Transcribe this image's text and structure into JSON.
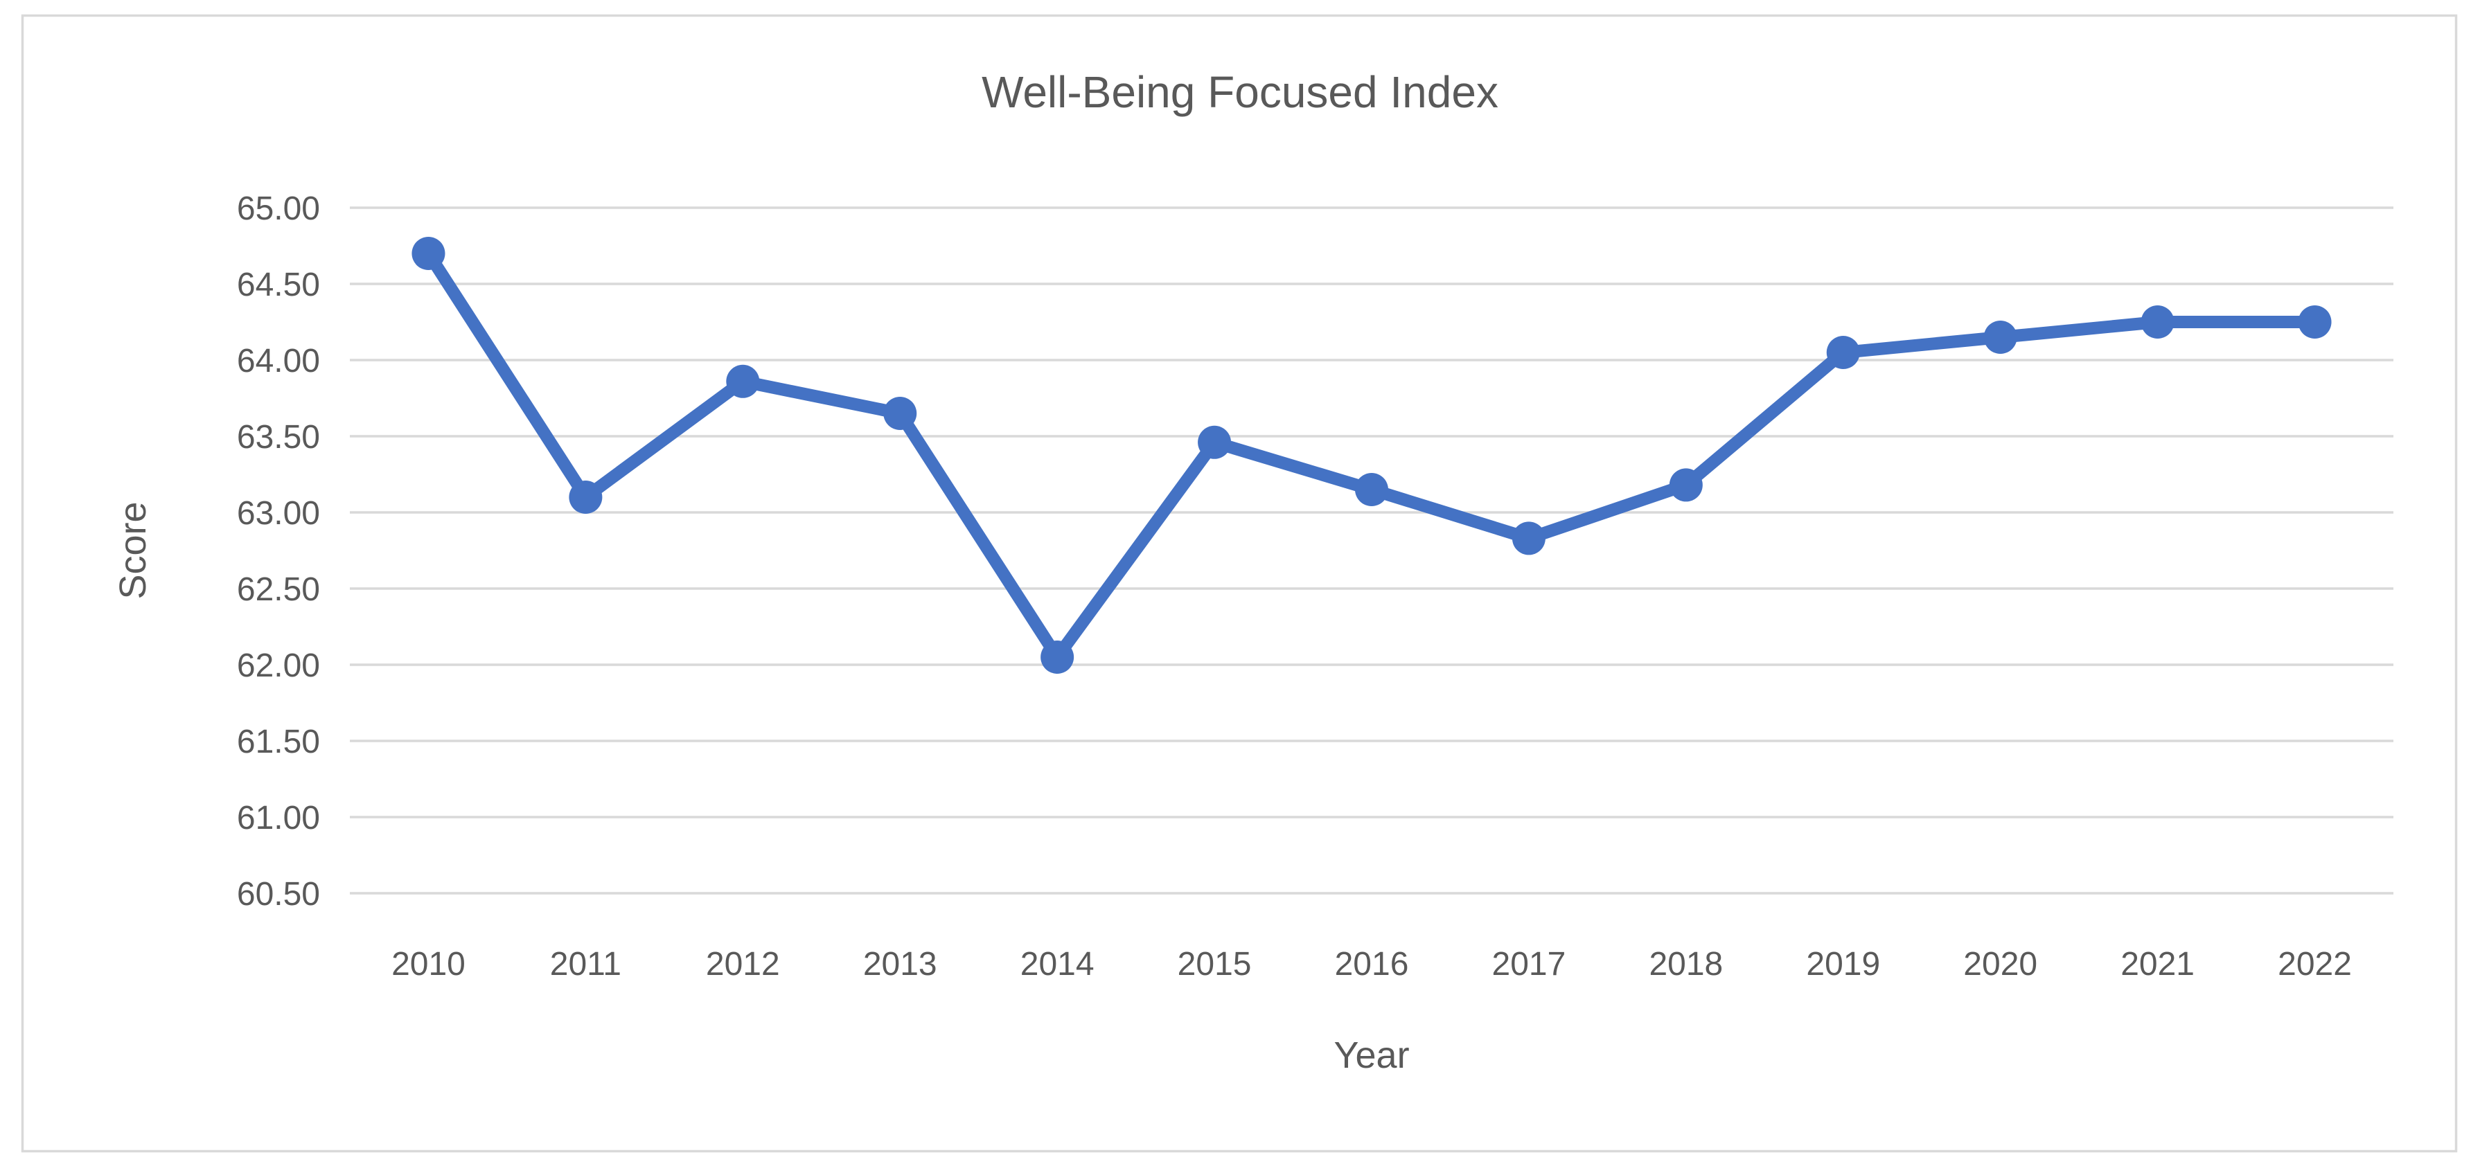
{
  "chart_data": {
    "type": "line",
    "title": "Well-Being Focused Index",
    "xlabel": "Year",
    "ylabel": "Score",
    "categories": [
      "2010",
      "2011",
      "2012",
      "2013",
      "2014",
      "2015",
      "2016",
      "2017",
      "2018",
      "2019",
      "2020",
      "2021",
      "2022"
    ],
    "series": [
      {
        "name": "Well-Being Focused Index",
        "values": [
          64.7,
          63.1,
          63.86,
          63.65,
          62.05,
          63.46,
          63.15,
          62.83,
          63.18,
          64.05,
          64.15,
          64.25,
          64.25
        ]
      }
    ],
    "ylim": [
      60.5,
      65.0
    ],
    "ytick_step": 0.5,
    "ytick_labels": [
      "65.00",
      "64.50",
      "64.00",
      "63.50",
      "63.00",
      "62.50",
      "62.00",
      "61.50",
      "61.00",
      "60.50"
    ],
    "grid": "horizontal",
    "legend": "none",
    "marker": "circle",
    "colors": {
      "line": "#4472C4",
      "marker": "#4472C4",
      "gridline": "#D9D9D9",
      "chart_border": "#D9D9D9",
      "text": "#595959",
      "background": "#FFFFFF"
    }
  }
}
